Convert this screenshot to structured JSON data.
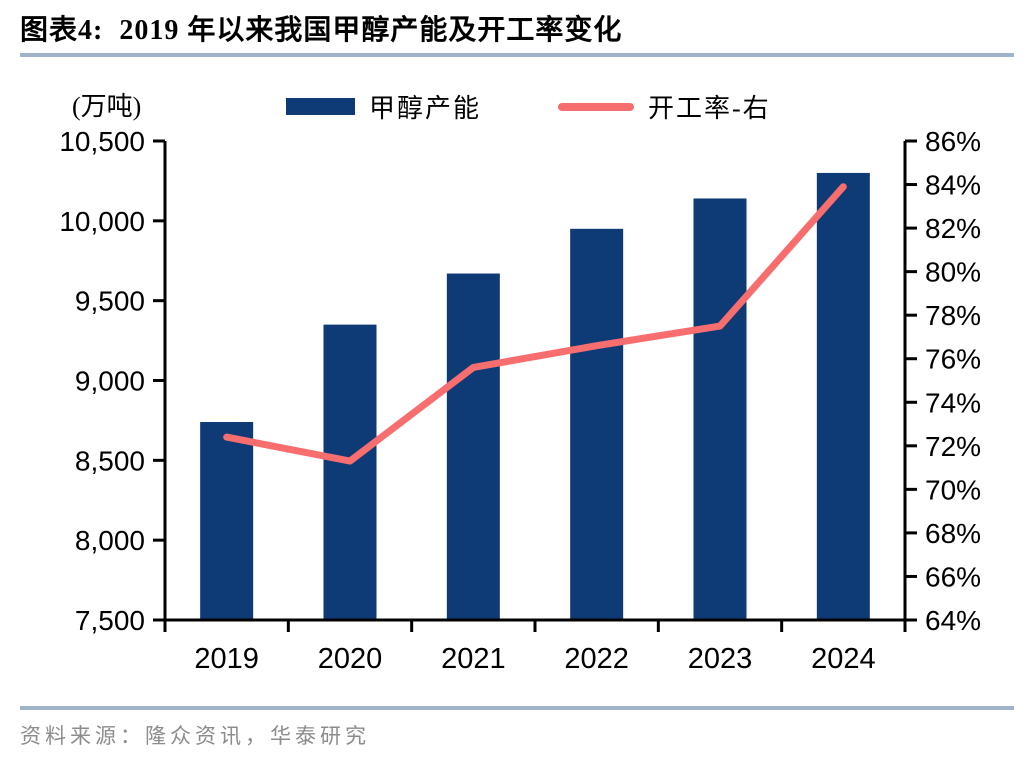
{
  "header": {
    "title": "图表4:  2019 年以来我国甲醇产能及开工率变化"
  },
  "footer": {
    "source": "资料来源：隆众资讯，华泰研究"
  },
  "chart_data": {
    "type": "bar",
    "combo": "bar+line",
    "title": "2019 年以来我国甲醇产能及开工率变化",
    "categories": [
      "2019",
      "2020",
      "2021",
      "2022",
      "2023",
      "2024"
    ],
    "series": [
      {
        "name": "甲醇产能",
        "type": "bar",
        "axis": "left",
        "values": [
          8740,
          9350,
          9670,
          9950,
          10140,
          10300
        ]
      },
      {
        "name": "开工率-右",
        "type": "line",
        "axis": "right",
        "values": [
          72.4,
          71.3,
          75.6,
          76.6,
          77.5,
          83.9
        ]
      }
    ],
    "left_axis": {
      "label": "(万吨)",
      "min": 7500,
      "max": 10500,
      "step": 500
    },
    "right_axis": {
      "min": 64,
      "max": 86,
      "step": 2,
      "suffix": "%"
    },
    "grid": false,
    "legend_position": "top"
  },
  "colors": {
    "bar": "#0e3a76",
    "line": "#f86e6e",
    "rule": "#9fb3c9",
    "axis": "#000000",
    "source_text": "#8c8c8c"
  }
}
